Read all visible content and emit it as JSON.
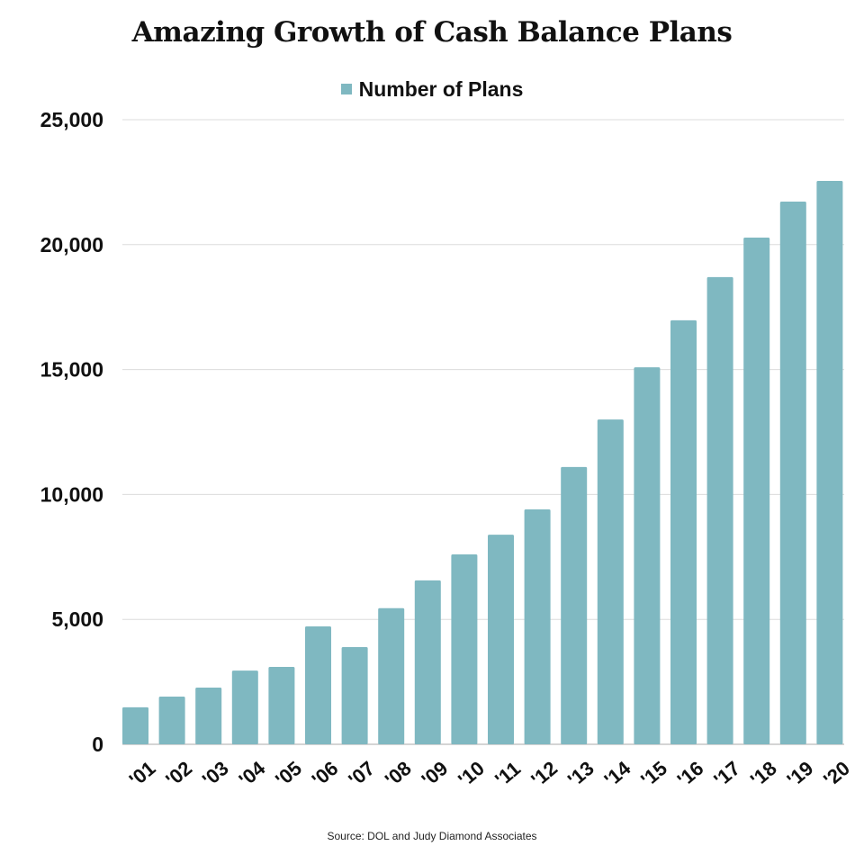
{
  "chart_data": {
    "type": "bar",
    "title": "Amazing Growth of Cash Balance Plans",
    "categories": [
      "'01",
      "'02",
      "'03",
      "'04",
      "'05",
      "'06",
      "'07",
      "'08",
      "'09",
      "'10",
      "'11",
      "'12",
      "'13",
      "'14",
      "'15",
      "'16",
      "'17",
      "'18",
      "'19",
      "'20"
    ],
    "series": [
      {
        "name": "Number of Plans",
        "color": "#7fb8c1",
        "values": [
          1480,
          1910,
          2270,
          2950,
          3100,
          4720,
          3890,
          5450,
          6560,
          7600,
          8390,
          9400,
          11100,
          13000,
          15090,
          16970,
          18700,
          20280,
          21720,
          22550
        ]
      }
    ],
    "ylim": [
      0,
      25000
    ],
    "yticks": [
      0,
      5000,
      10000,
      15000,
      20000,
      25000
    ],
    "ytick_labels": [
      "0",
      "5,000",
      "10,000",
      "15,000",
      "20,000",
      "25,000"
    ],
    "grid": true,
    "legend": "top-center",
    "source": "Source: DOL and Judy Diamond Associates"
  }
}
